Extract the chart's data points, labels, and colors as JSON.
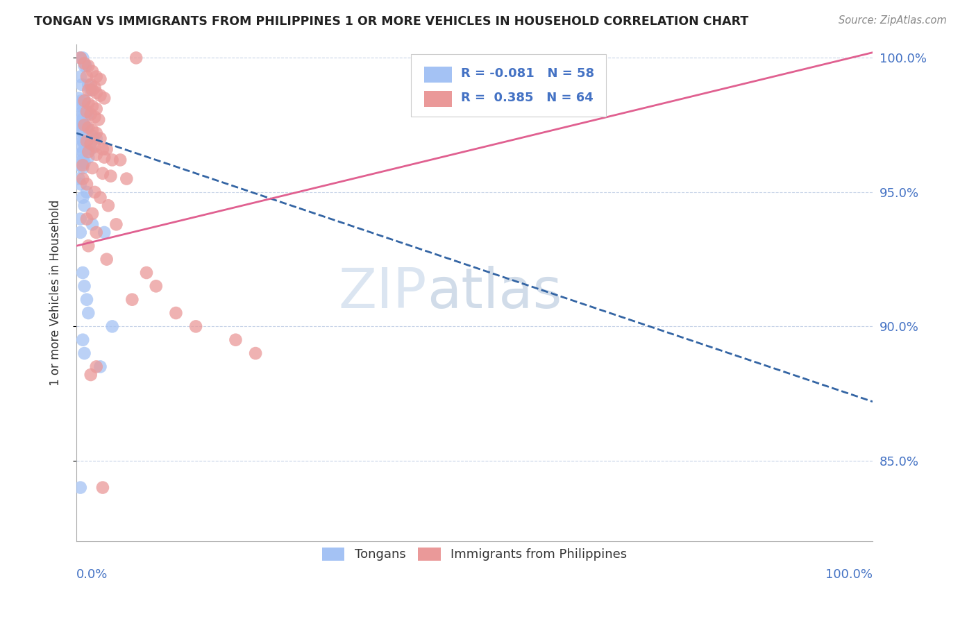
{
  "title": "TONGAN VS IMMIGRANTS FROM PHILIPPINES 1 OR MORE VEHICLES IN HOUSEHOLD CORRELATION CHART",
  "source": "Source: ZipAtlas.com",
  "ylabel": "1 or more Vehicles in Household",
  "xlim": [
    0.0,
    1.0
  ],
  "ylim": [
    0.82,
    1.005
  ],
  "yticks": [
    0.85,
    0.9,
    0.95,
    1.0
  ],
  "ytick_labels": [
    "85.0%",
    "90.0%",
    "95.0%",
    "100.0%"
  ],
  "legend_R_blue": "-0.081",
  "legend_N_blue": "58",
  "legend_R_pink": "0.385",
  "legend_N_pink": "64",
  "blue_color": "#a4c2f4",
  "pink_color": "#ea9999",
  "blue_line_color": "#3465a4",
  "pink_line_color": "#e06090",
  "blue_line_x0": 0.0,
  "blue_line_y0": 0.972,
  "blue_line_x1": 1.0,
  "blue_line_y1": 0.872,
  "pink_line_x0": 0.0,
  "pink_line_y0": 0.93,
  "pink_line_x1": 1.0,
  "pink_line_y1": 1.002,
  "blue_scatter_x": [
    0.005,
    0.008,
    0.01,
    0.012,
    0.005,
    0.007,
    0.015,
    0.018,
    0.003,
    0.006,
    0.01,
    0.004,
    0.006,
    0.008,
    0.012,
    0.014,
    0.005,
    0.007,
    0.003,
    0.005,
    0.008,
    0.01,
    0.013,
    0.005,
    0.008,
    0.02,
    0.025,
    0.005,
    0.008,
    0.01,
    0.005,
    0.012,
    0.018,
    0.008,
    0.005,
    0.015,
    0.008,
    0.01,
    0.005,
    0.008,
    0.003,
    0.005,
    0.013,
    0.008,
    0.01,
    0.005,
    0.02,
    0.035,
    0.005,
    0.008,
    0.01,
    0.013,
    0.015,
    0.045,
    0.008,
    0.01,
    0.03,
    0.005
  ],
  "blue_scatter_y": [
    1.0,
    1.0,
    0.997,
    0.997,
    0.993,
    0.99,
    0.99,
    0.988,
    0.985,
    0.984,
    0.984,
    0.983,
    0.982,
    0.98,
    0.98,
    0.979,
    0.978,
    0.977,
    0.976,
    0.975,
    0.975,
    0.975,
    0.974,
    0.973,
    0.972,
    0.971,
    0.97,
    0.97,
    0.969,
    0.968,
    0.967,
    0.966,
    0.966,
    0.965,
    0.964,
    0.963,
    0.962,
    0.961,
    0.96,
    0.959,
    0.955,
    0.953,
    0.95,
    0.948,
    0.945,
    0.94,
    0.938,
    0.935,
    0.935,
    0.92,
    0.915,
    0.91,
    0.905,
    0.9,
    0.895,
    0.89,
    0.885,
    0.84
  ],
  "pink_scatter_x": [
    0.005,
    0.075,
    0.01,
    0.015,
    0.02,
    0.013,
    0.025,
    0.03,
    0.018,
    0.023,
    0.015,
    0.02,
    0.025,
    0.03,
    0.035,
    0.01,
    0.015,
    0.02,
    0.025,
    0.013,
    0.018,
    0.023,
    0.028,
    0.01,
    0.015,
    0.02,
    0.025,
    0.03,
    0.013,
    0.018,
    0.023,
    0.033,
    0.038,
    0.015,
    0.025,
    0.035,
    0.045,
    0.055,
    0.008,
    0.02,
    0.033,
    0.043,
    0.063,
    0.008,
    0.013,
    0.023,
    0.03,
    0.04,
    0.02,
    0.013,
    0.05,
    0.025,
    0.015,
    0.038,
    0.088,
    0.1,
    0.07,
    0.125,
    0.15,
    0.2,
    0.225,
    0.025,
    0.018,
    0.033
  ],
  "pink_scatter_y": [
    1.0,
    1.0,
    0.998,
    0.997,
    0.995,
    0.993,
    0.993,
    0.992,
    0.99,
    0.989,
    0.988,
    0.988,
    0.987,
    0.986,
    0.985,
    0.984,
    0.983,
    0.982,
    0.981,
    0.98,
    0.979,
    0.978,
    0.977,
    0.975,
    0.974,
    0.973,
    0.972,
    0.97,
    0.969,
    0.968,
    0.967,
    0.966,
    0.966,
    0.965,
    0.964,
    0.963,
    0.962,
    0.962,
    0.96,
    0.959,
    0.957,
    0.956,
    0.955,
    0.955,
    0.953,
    0.95,
    0.948,
    0.945,
    0.942,
    0.94,
    0.938,
    0.935,
    0.93,
    0.925,
    0.92,
    0.915,
    0.91,
    0.905,
    0.9,
    0.895,
    0.89,
    0.885,
    0.882,
    0.84
  ]
}
